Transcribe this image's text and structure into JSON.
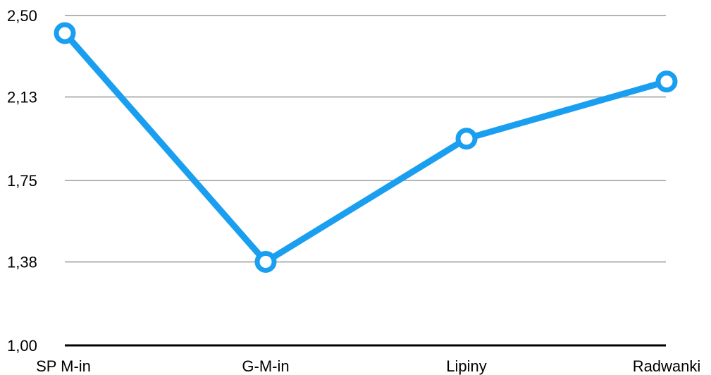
{
  "chart_data": {
    "type": "line",
    "categories": [
      "SP M-in",
      "G-M-in",
      "Lipiny",
      "Radwanki"
    ],
    "series": [
      {
        "values": [
          2.42,
          1.38,
          1.94,
          2.2
        ]
      }
    ],
    "ylim": [
      1.0,
      2.5
    ],
    "yticks": [
      1.0,
      1.38,
      1.75,
      2.13,
      2.5
    ],
    "ytick_labels": [
      "1,00",
      "1,38",
      "1,75",
      "2,13",
      "2,50"
    ],
    "grid": true,
    "colors": {
      "series": "#1a9ff0",
      "grid": "#b3b3b3",
      "axis": "#000000"
    }
  }
}
